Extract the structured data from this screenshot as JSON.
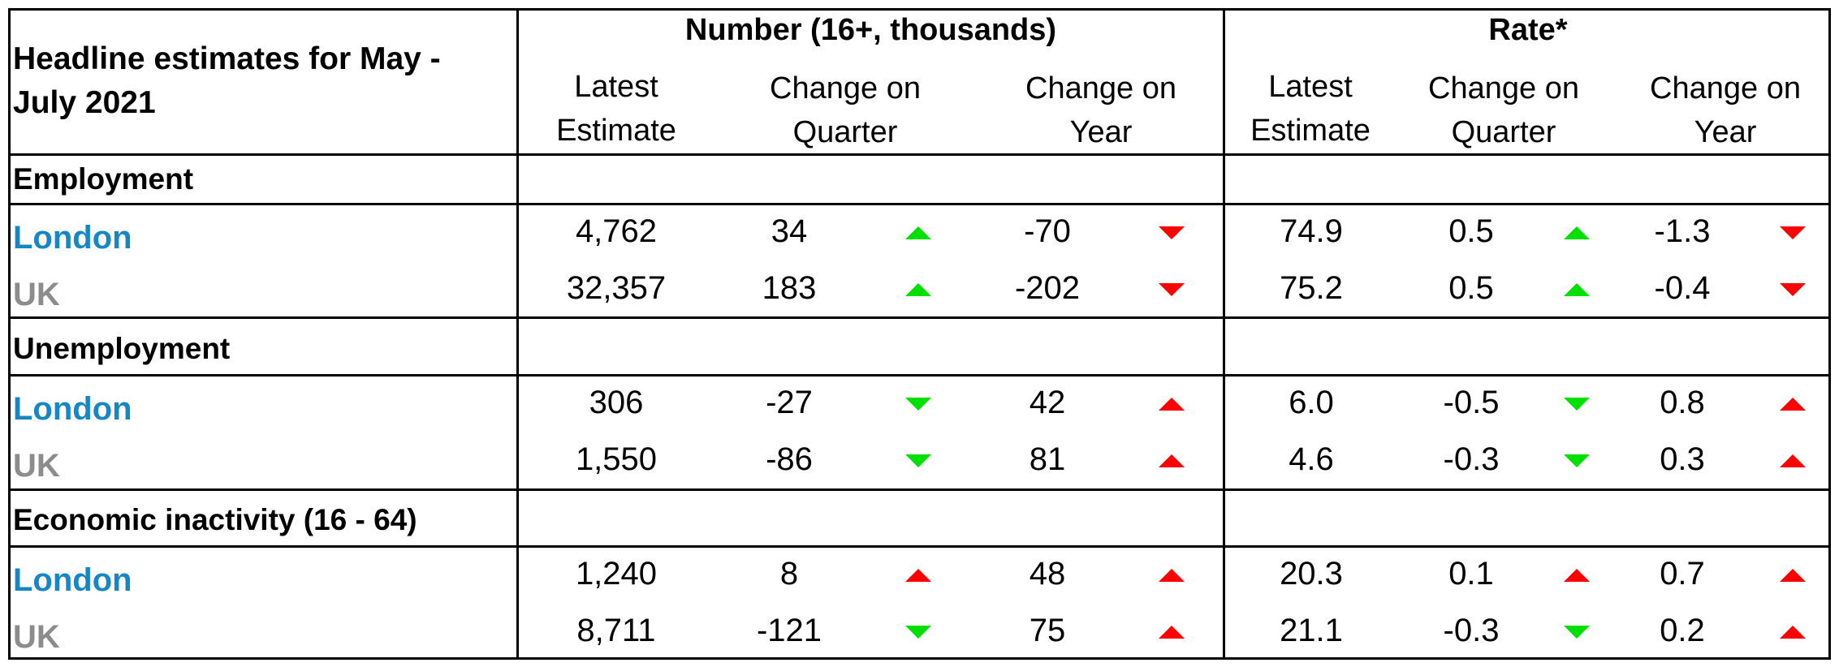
{
  "header": {
    "title": "Headline estimates for May - July 2021",
    "title_line1": "Headline estimates for May -",
    "title_line2": "July 2021",
    "number_group": "Number (16+, thousands)",
    "rate_group": "Rate*",
    "columns": [
      {
        "line1": "Latest",
        "line2": "Estimate"
      },
      {
        "line1": "Change on",
        "line2": "Quarter"
      },
      {
        "line1": "Change on",
        "line2": "Year"
      },
      {
        "line1": "Latest",
        "line2": "Estimate"
      },
      {
        "line1": "Change on",
        "line2": "Quarter"
      },
      {
        "line1": "Change on",
        "line2": "Year"
      }
    ]
  },
  "colors": {
    "london": "#1787c3",
    "uk": "#8c8c8c",
    "arrow_green": "#00e000",
    "arrow_red": "#ff0000"
  },
  "sections": [
    {
      "title": "Employment",
      "rows": [
        {
          "label": "London",
          "values": [
            "4,762",
            "34",
            "-70",
            "74.9",
            "0.5",
            "-1.3"
          ],
          "arrows": [
            null,
            "green-up",
            "red-down",
            null,
            "green-up",
            "red-down"
          ]
        },
        {
          "label": "UK",
          "values": [
            "32,357",
            "183",
            "-202",
            "75.2",
            "0.5",
            "-0.4"
          ],
          "arrows": [
            null,
            "green-up",
            "red-down",
            null,
            "green-up",
            "red-down"
          ]
        }
      ]
    },
    {
      "title": "Unemployment",
      "rows": [
        {
          "label": "London",
          "values": [
            "306",
            "-27",
            "42",
            "6.0",
            "-0.5",
            "0.8"
          ],
          "arrows": [
            null,
            "green-down",
            "red-up",
            null,
            "green-down",
            "red-up"
          ]
        },
        {
          "label": "UK",
          "values": [
            "1,550",
            "-86",
            "81",
            "4.6",
            "-0.3",
            "0.3"
          ],
          "arrows": [
            null,
            "green-down",
            "red-up",
            null,
            "green-down",
            "red-up"
          ]
        }
      ]
    },
    {
      "title": "Economic inactivity (16 - 64)",
      "rows": [
        {
          "label": "London",
          "values": [
            "1,240",
            "8",
            "48",
            "20.3",
            "0.1",
            "0.7"
          ],
          "arrows": [
            null,
            "red-up",
            "red-up",
            null,
            "red-up",
            "red-up"
          ]
        },
        {
          "label": "UK",
          "values": [
            "8,711",
            "-121",
            "75",
            "21.1",
            "-0.3",
            "0.2"
          ],
          "arrows": [
            null,
            "green-down",
            "red-up",
            null,
            "green-down",
            "red-up"
          ]
        }
      ]
    }
  ]
}
